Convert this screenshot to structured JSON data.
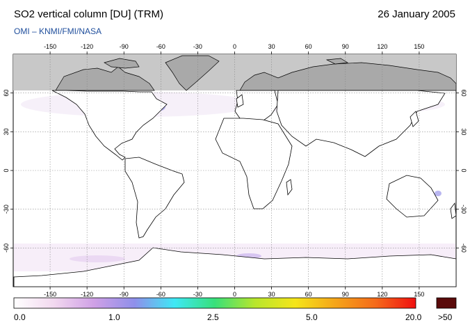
{
  "header": {
    "title": "SO2 vertical column [DU] (TRM)",
    "date": "26 January 2005",
    "subtitle": "OMI  –  KNMI/FMI/NASA"
  },
  "map": {
    "projection": "equirectangular",
    "lon_ticks": [
      -150,
      -120,
      -90,
      -60,
      -30,
      0,
      30,
      60,
      90,
      120,
      150
    ],
    "lat_ticks": [
      60,
      30,
      0,
      -30,
      -60
    ],
    "lon_range": [
      -180,
      180
    ],
    "lat_range": [
      -90,
      90
    ],
    "no_data_region": "north of ~63N (grey)",
    "gridlines": true
  },
  "colorbar": {
    "labels": [
      "0.0",
      "1.0",
      "2.5",
      "5.0",
      "20.0",
      ">50"
    ],
    "colors": [
      "#ffffff",
      "#f2d8ef",
      "#cfa0e6",
      "#8f8fea",
      "#3ee8f5",
      "#38e07a",
      "#b8e62c",
      "#f5e51a",
      "#f5a51a",
      "#f56a1a",
      "#f01010"
    ],
    "overflow_color": "#5a0a0a",
    "no_data_color": "#c8c8c8",
    "land_shadow_color": "#a9a9a9"
  }
}
